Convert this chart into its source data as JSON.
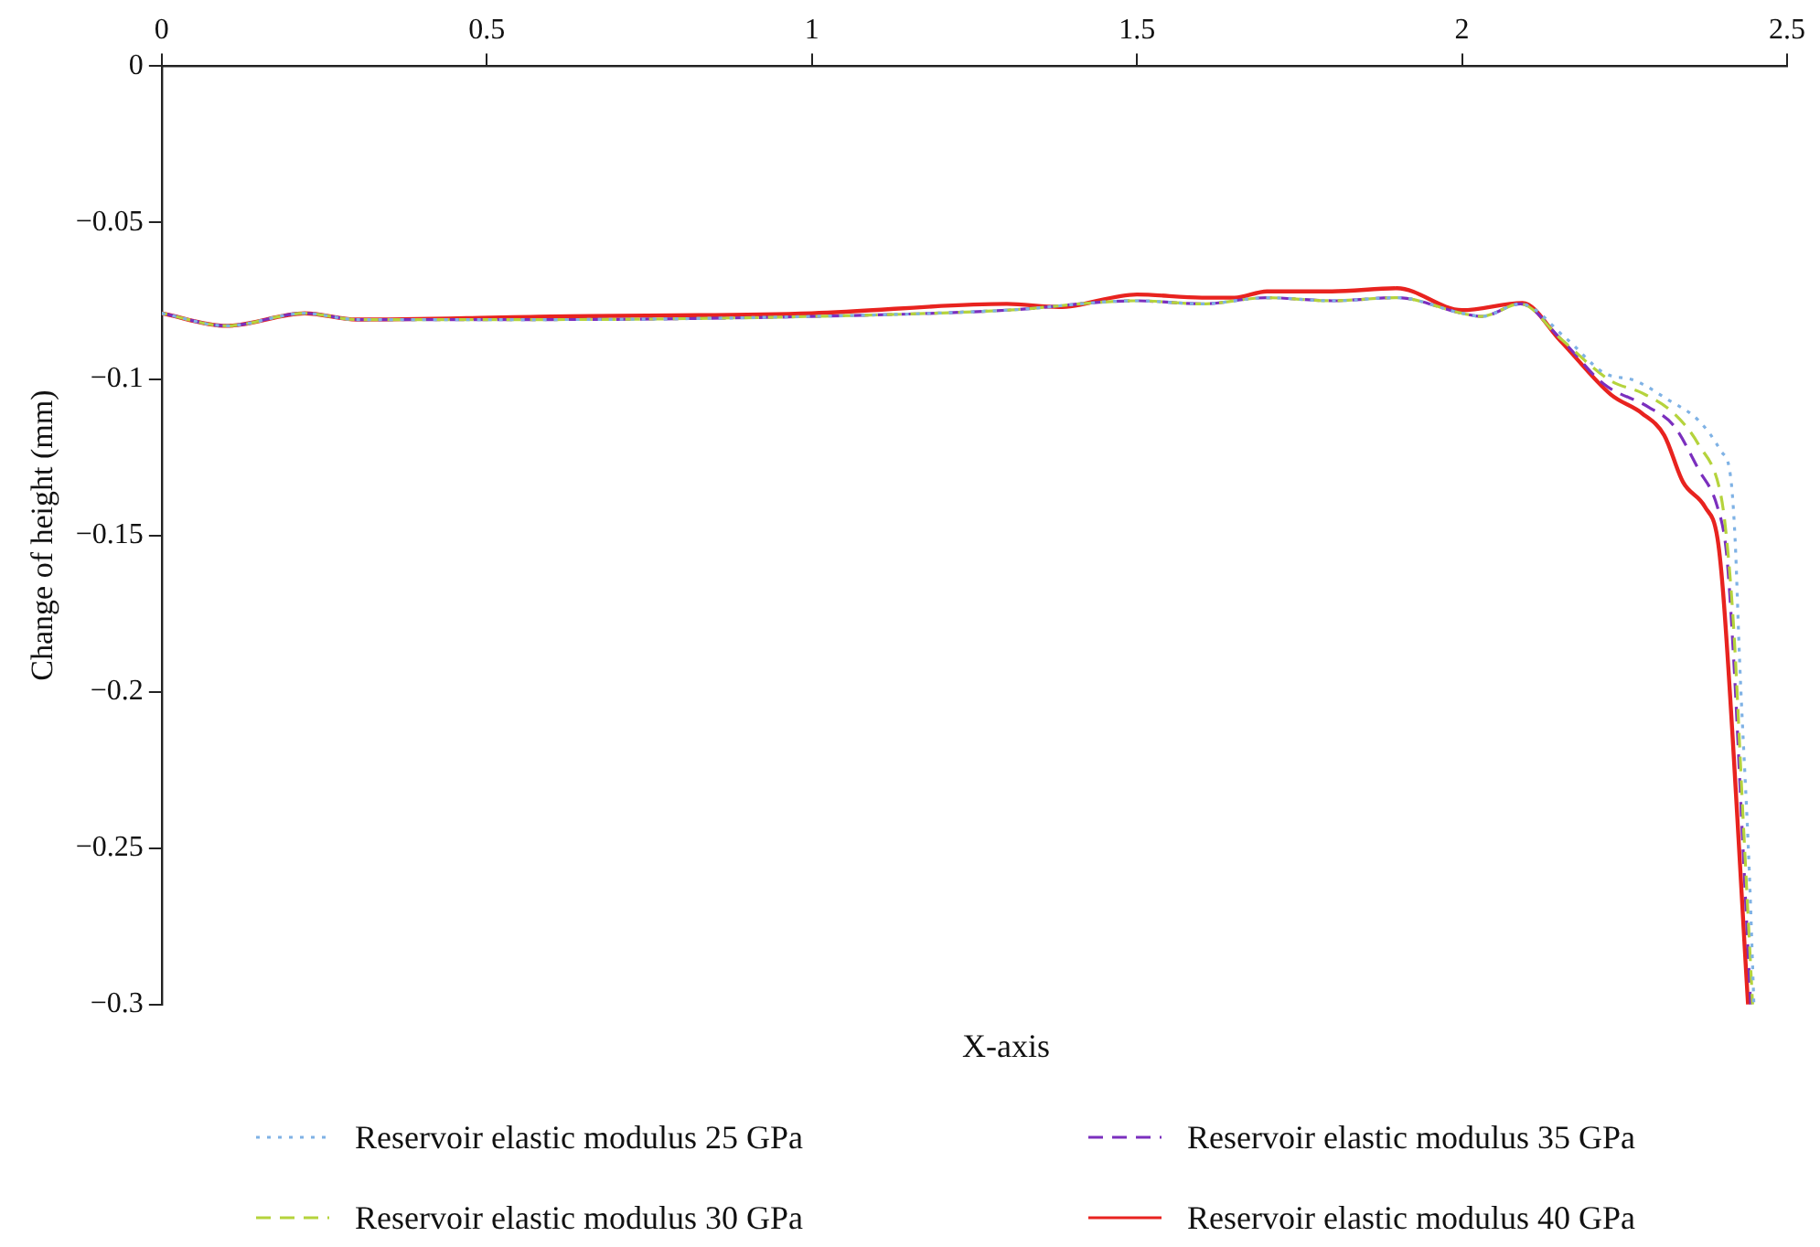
{
  "chart_data": {
    "type": "line",
    "xlabel": "X-axis",
    "ylabel": "Change of height (mm)",
    "xlim": [
      0,
      2.5
    ],
    "ylim": [
      -0.3,
      0
    ],
    "xticks": [
      0,
      0.5,
      1,
      1.5,
      2,
      2.5
    ],
    "yticks": [
      {
        "value": -0.3,
        "label": "−0.3"
      },
      {
        "value": -0.25,
        "label": "−0.25"
      },
      {
        "value": -0.2,
        "label": "−0.2"
      },
      {
        "value": -0.15,
        "label": "−0.15"
      },
      {
        "value": -0.1,
        "label": "−0.1"
      },
      {
        "value": -0.05,
        "label": "−0.05"
      },
      0
    ],
    "grid": false,
    "legend": "bottom",
    "series": [
      {
        "name": "Reservoir elastic modulus 25 GPa",
        "color": "#7fb2e5",
        "line_style": "dotted",
        "x": [
          0,
          0.1,
          0.22,
          0.3,
          0.6,
          1.0,
          1.3,
          1.5,
          1.6,
          1.7,
          1.8,
          1.9,
          2.0,
          2.03,
          2.09,
          2.16,
          2.218,
          2.267,
          2.316,
          2.364,
          2.398,
          2.413,
          2.42,
          2.427,
          2.442,
          2.449
        ],
        "values": [
          -0.079,
          -0.083,
          -0.079,
          -0.081,
          -0.081,
          -0.08,
          -0.078,
          -0.075,
          -0.076,
          -0.074,
          -0.075,
          -0.074,
          -0.079,
          -0.08,
          -0.076,
          -0.087,
          -0.098,
          -0.1006,
          -0.1065,
          -0.1133,
          -0.123,
          -0.131,
          -0.151,
          -0.19,
          -0.258,
          -0.3
        ]
      },
      {
        "name": "Reservoir elastic modulus 30 GPa",
        "color": "#b5d33c",
        "line_style": "dashed",
        "x": [
          0,
          0.1,
          0.22,
          0.3,
          0.6,
          1.0,
          1.3,
          1.5,
          1.6,
          1.7,
          1.8,
          1.9,
          2.0,
          2.03,
          2.09,
          2.151,
          2.229,
          2.277,
          2.326,
          2.364,
          2.398,
          2.407,
          2.418,
          2.432,
          2.447
        ],
        "values": [
          -0.079,
          -0.083,
          -0.079,
          -0.081,
          -0.081,
          -0.08,
          -0.078,
          -0.075,
          -0.076,
          -0.074,
          -0.075,
          -0.074,
          -0.079,
          -0.08,
          -0.076,
          -0.087,
          -0.1006,
          -0.1045,
          -0.111,
          -0.121,
          -0.137,
          -0.151,
          -0.18,
          -0.239,
          -0.3
        ]
      },
      {
        "name": "Reservoir elastic modulus 35 GPa",
        "color": "#7b2fbe",
        "line_style": "dashed",
        "x": [
          0,
          0.1,
          0.22,
          0.3,
          0.6,
          1.0,
          1.3,
          1.5,
          1.6,
          1.7,
          1.8,
          1.9,
          2.0,
          2.03,
          2.09,
          2.151,
          2.218,
          2.287,
          2.326,
          2.364,
          2.393,
          2.407,
          2.418,
          2.432,
          2.444
        ],
        "values": [
          -0.079,
          -0.083,
          -0.079,
          -0.081,
          -0.081,
          -0.08,
          -0.078,
          -0.075,
          -0.076,
          -0.074,
          -0.075,
          -0.074,
          -0.079,
          -0.08,
          -0.076,
          -0.087,
          -0.1016,
          -0.109,
          -0.115,
          -0.129,
          -0.141,
          -0.156,
          -0.19,
          -0.249,
          -0.3
        ]
      },
      {
        "name": "Reservoir elastic modulus 40 GPa",
        "color": "#e8231f",
        "line_style": "solid",
        "x": [
          0,
          0.1,
          0.22,
          0.3,
          0.6,
          1.0,
          1.3,
          1.38,
          1.5,
          1.6,
          1.65,
          1.7,
          1.8,
          1.9,
          2.0,
          2.093,
          2.151,
          2.229,
          2.277,
          2.311,
          2.34,
          2.374,
          2.393,
          2.403,
          2.44
        ],
        "values": [
          -0.079,
          -0.083,
          -0.079,
          -0.081,
          -0.08,
          -0.079,
          -0.076,
          -0.077,
          -0.073,
          -0.074,
          -0.074,
          -0.072,
          -0.072,
          -0.071,
          -0.078,
          -0.0757,
          -0.0877,
          -0.105,
          -0.111,
          -0.118,
          -0.133,
          -0.141,
          -0.151,
          -0.172,
          -0.3
        ]
      }
    ]
  }
}
